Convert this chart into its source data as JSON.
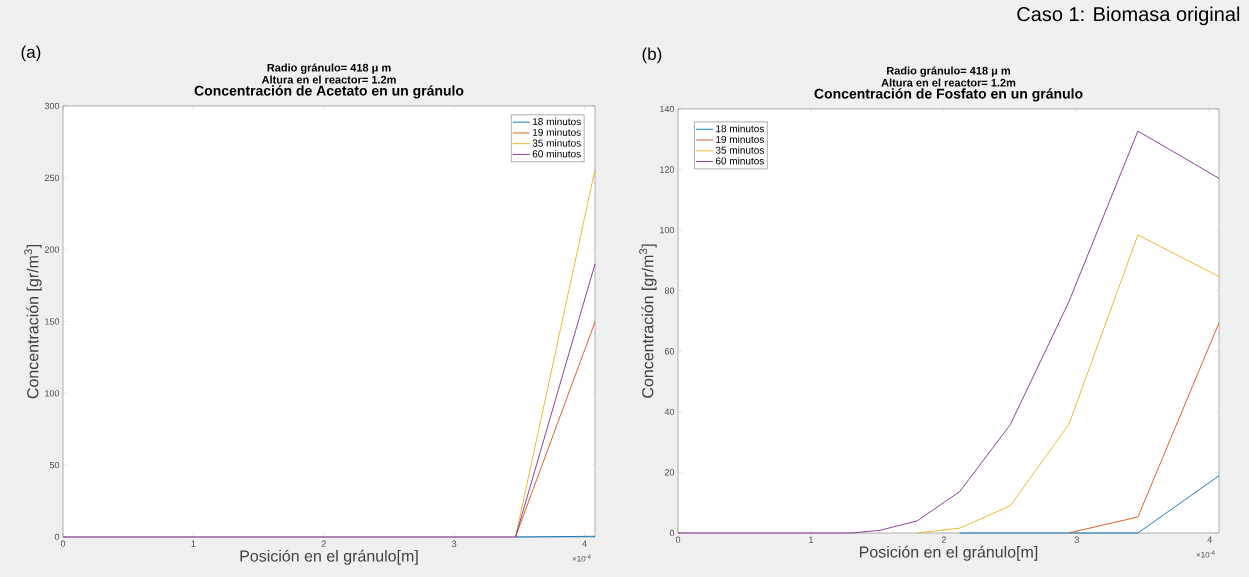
{
  "chart_data": [
    {
      "type": "line",
      "title": "Concentración de Acetato en un gránulo",
      "subtitle": "Radio gránulo= 418 μ m",
      "annotations": [
        "(a)",
        "Altura en el reactor= 1.2m",
        "×10$^{-4}$",
        "Caso 1: Biomasa original"
      ],
      "xlabel": "Posición en el gránulo[m]",
      "ylabel": "Concentración [gr/m$^{3}$]",
      "x": [
        0,
        1.31,
        1.52,
        1.8,
        2.12,
        2.5,
        2.94,
        3.47,
        4.08
      ],
      "series": [
        {
          "name": "18 minutos",
          "color": "#0072bd",
          "values": [
            null,
            null,
            null,
            null,
            null,
            null,
            null,
            0,
            0.5
          ]
        },
        {
          "name": "19 minutos",
          "color": "#d95319",
          "values": [
            null,
            null,
            null,
            null,
            null,
            null,
            null,
            0,
            149.7
          ]
        },
        {
          "name": "35 minutos",
          "color": "#edb120",
          "values": [
            null,
            null,
            null,
            null,
            null,
            null,
            null,
            0,
            255.7
          ]
        },
        {
          "name": "60 minutos",
          "color": "#7e2f8e",
          "values": [
            0,
            0,
            0,
            0,
            0,
            0,
            0,
            0,
            190
          ]
        }
      ],
      "xlim": [
        0,
        4.08
      ],
      "ylim": [
        0,
        300
      ],
      "xticks": [
        0,
        1,
        2,
        3,
        4
      ],
      "yticks": [
        0,
        50,
        100,
        150,
        200,
        250,
        300
      ],
      "legend": "top right",
      "line_style": "solid"
    },
    {
      "type": "line",
      "title": "Concentración de Fosfato en un gránulo",
      "subtitle": "Radio gránulo= 418 μ m",
      "annotations": [
        "(b)",
        "Altura en el reactor= 1.2m",
        "×10$^{-4}$"
      ],
      "xlabel": "Posición en el gránulo[m]",
      "ylabel": "Concentración [gr/m$^{3}$]",
      "x": [
        0,
        1.31,
        1.52,
        1.8,
        2.12,
        2.5,
        2.94,
        3.46,
        4.07
      ],
      "series": [
        {
          "name": "18 minutos",
          "color": "#0072bd",
          "values": [
            null,
            null,
            null,
            null,
            0,
            0,
            0,
            0,
            18.9
          ]
        },
        {
          "name": "19 minutos",
          "color": "#d95319",
          "values": [
            null,
            null,
            null,
            null,
            null,
            null,
            0,
            5.3,
            69.4
          ]
        },
        {
          "name": "35 minutos",
          "color": "#edb120",
          "values": [
            null,
            null,
            null,
            0,
            1.6,
            9.0,
            35.8,
            98.4,
            84.7
          ]
        },
        {
          "name": "60 minutos",
          "color": "#7e2f8e",
          "values": [
            0,
            0,
            0.9,
            4.0,
            13.7,
            35.8,
            76.3,
            132.7,
            117.1
          ]
        }
      ],
      "xlim": [
        0,
        4.07
      ],
      "ylim": [
        0,
        140
      ],
      "xticks": [
        0,
        1,
        2,
        3,
        4
      ],
      "yticks": [
        0,
        20,
        40,
        60,
        80,
        100,
        120,
        140
      ],
      "legend": "top left",
      "line_style": "solid"
    }
  ]
}
